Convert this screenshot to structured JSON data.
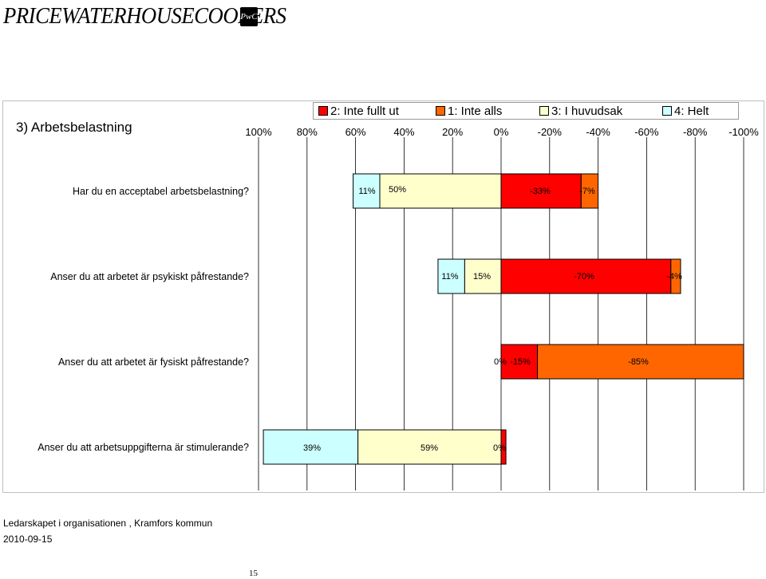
{
  "logo": {
    "text": "PRICEWATERHOUSECOOPERS",
    "mark": "PwC"
  },
  "chart_data": {
    "type": "bar",
    "orientation": "horizontal-diverging-stacked",
    "title": "3) Arbetsbelastning",
    "legend_placement": "top",
    "x_ticks": [
      "100%",
      "80%",
      "60%",
      "40%",
      "20%",
      "0%",
      "-20%",
      "-40%",
      "-60%",
      "-80%",
      "-100%"
    ],
    "xlim": [
      100,
      -100
    ],
    "grid": true,
    "legend": [
      {
        "key": "s2",
        "name": "2: Inte fullt ut",
        "color": "#ff0000"
      },
      {
        "key": "s1",
        "name": "1: Inte alls",
        "color": "#ff6600"
      },
      {
        "key": "s3",
        "name": "3: I huvudsak",
        "color": "#ffffcc"
      },
      {
        "key": "s4",
        "name": "4: Helt",
        "color": "#ccffff"
      }
    ],
    "categories": [
      "Har du en acceptabel arbetsbelastning?",
      "Anser du att arbetet är psykiskt påfrestande?",
      "Anser du att arbetet är fysiskt påfrestande?",
      "Anser du att arbetsuppgifterna är stimulerande?"
    ],
    "series": [
      {
        "name": "4: Helt",
        "color": "#ccffff",
        "values": [
          11,
          11,
          0,
          39
        ],
        "labels": [
          "11%",
          "11%",
          "",
          "39%"
        ]
      },
      {
        "name": "3: I huvudsak",
        "color": "#ffffcc",
        "values": [
          50,
          15,
          0,
          59
        ],
        "labels": [
          "50%",
          "15%",
          "0%",
          "59%"
        ]
      },
      {
        "name": "2: Inte fullt ut",
        "color": "#ff0000",
        "values": [
          -33,
          -70,
          -15,
          -2
        ],
        "labels": [
          "-33%",
          "-70%",
          "-15%",
          ""
        ]
      },
      {
        "name": "1: Inte alls",
        "color": "#ff6600",
        "values": [
          -7,
          -4,
          -85,
          0
        ],
        "labels": [
          "-7%",
          "-4%",
          "-85%",
          "0%"
        ]
      }
    ]
  },
  "footer": {
    "line1": "Ledarskapet i organisationen , Kramfors kommun",
    "line2": "2010-09-15",
    "page": "15"
  }
}
